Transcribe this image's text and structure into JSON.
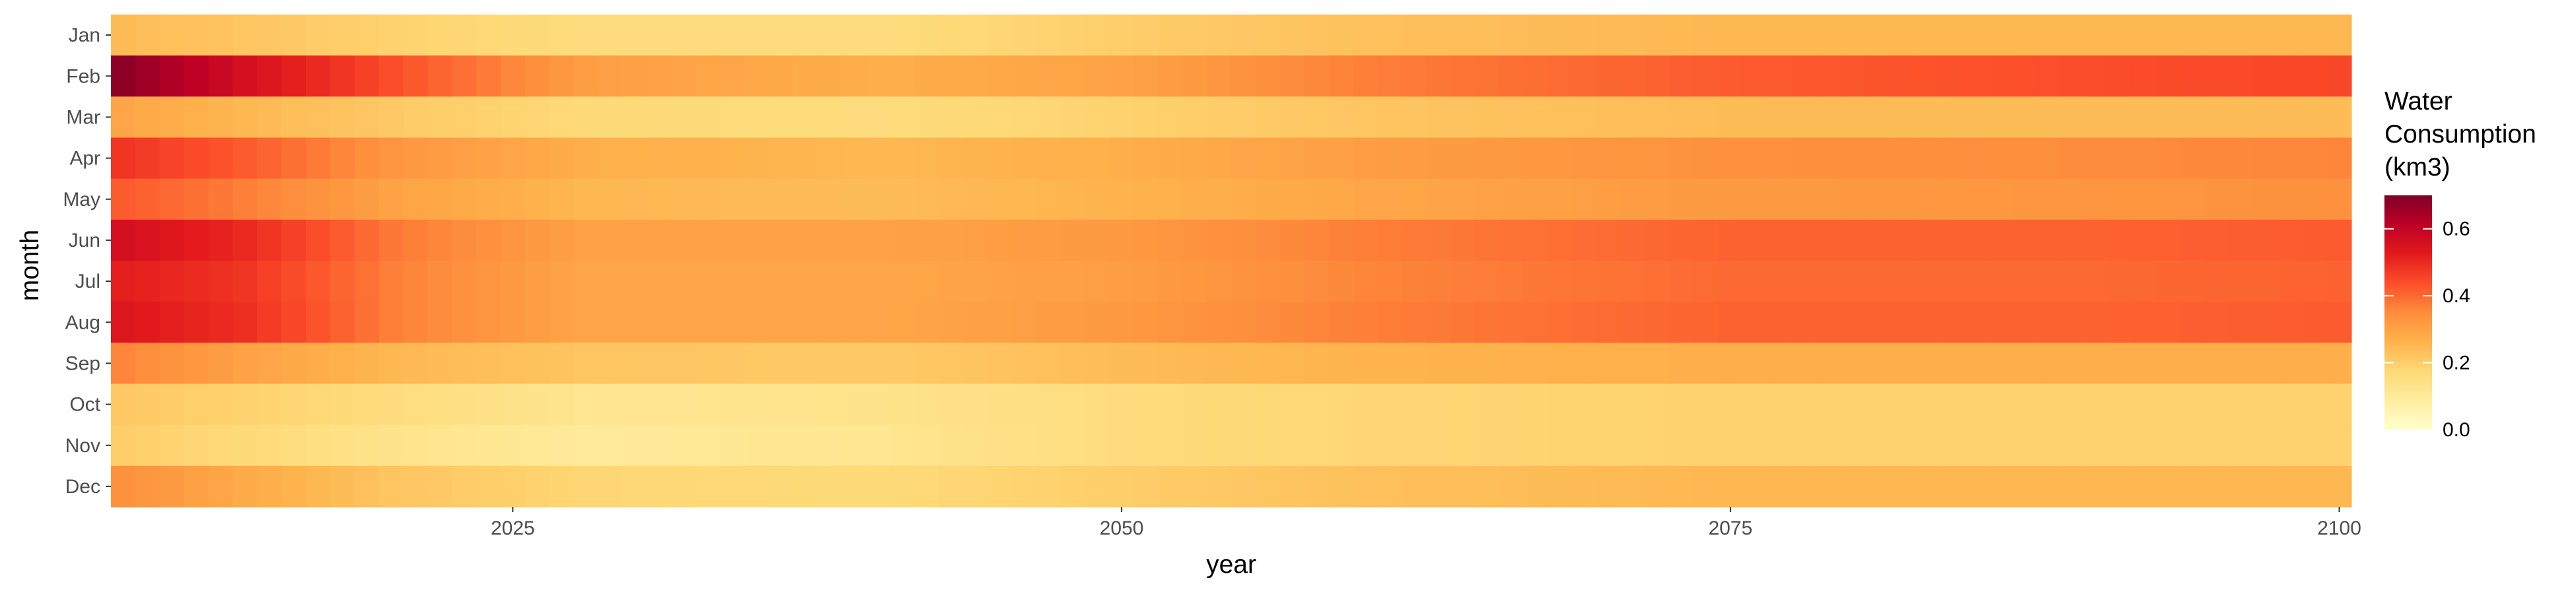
{
  "chart_data": {
    "type": "heatmap",
    "x_label": "year",
    "y_label": "month",
    "x_range": [
      2009,
      2100
    ],
    "x_ticks": [
      "2025",
      "2050",
      "2075",
      "2100"
    ],
    "months": [
      "Jan",
      "Feb",
      "Mar",
      "Apr",
      "May",
      "Jun",
      "Jul",
      "Aug",
      "Sep",
      "Oct",
      "Nov",
      "Dec"
    ],
    "legend": {
      "title_lines": [
        "Water",
        "Consumption",
        "(km3)"
      ],
      "min": 0,
      "max": 0.7,
      "ticks": [
        "0.0",
        "0.2",
        "0.4",
        "0.6"
      ],
      "placement": "right"
    },
    "palette": [
      "#ffffcc",
      "#ffeda0",
      "#fed976",
      "#feb24c",
      "#fd8d3c",
      "#fc4e2a",
      "#e31a1c",
      "#bd0026",
      "#800026"
    ],
    "grid": false,
    "year_keypoints": [
      2009,
      2014,
      2020,
      2028,
      2040,
      2050,
      2060,
      2075,
      2090,
      2100
    ],
    "month_values": {
      "Jan": [
        0.24,
        0.22,
        0.19,
        0.16,
        0.16,
        0.2,
        0.23,
        0.25,
        0.25,
        0.25
      ],
      "Feb": [
        0.68,
        0.56,
        0.44,
        0.31,
        0.27,
        0.3,
        0.37,
        0.42,
        0.44,
        0.45
      ],
      "Mar": [
        0.29,
        0.25,
        0.21,
        0.17,
        0.16,
        0.19,
        0.22,
        0.24,
        0.24,
        0.24
      ],
      "Apr": [
        0.48,
        0.42,
        0.33,
        0.27,
        0.25,
        0.27,
        0.31,
        0.34,
        0.35,
        0.36
      ],
      "May": [
        0.42,
        0.37,
        0.3,
        0.25,
        0.24,
        0.26,
        0.29,
        0.32,
        0.33,
        0.34
      ],
      "Jun": [
        0.56,
        0.5,
        0.38,
        0.3,
        0.3,
        0.32,
        0.37,
        0.41,
        0.41,
        0.42
      ],
      "Jul": [
        0.52,
        0.48,
        0.37,
        0.29,
        0.29,
        0.31,
        0.36,
        0.4,
        0.4,
        0.41
      ],
      "Aug": [
        0.54,
        0.49,
        0.37,
        0.29,
        0.29,
        0.32,
        0.37,
        0.41,
        0.41,
        0.42
      ],
      "Sep": [
        0.36,
        0.3,
        0.25,
        0.22,
        0.21,
        0.24,
        0.26,
        0.27,
        0.27,
        0.27
      ],
      "Oct": [
        0.21,
        0.19,
        0.16,
        0.12,
        0.13,
        0.16,
        0.18,
        0.19,
        0.19,
        0.19
      ],
      "Nov": [
        0.2,
        0.17,
        0.13,
        0.1,
        0.12,
        0.16,
        0.18,
        0.19,
        0.19,
        0.19
      ],
      "Dec": [
        0.34,
        0.28,
        0.22,
        0.18,
        0.17,
        0.2,
        0.23,
        0.25,
        0.25,
        0.25
      ]
    }
  }
}
